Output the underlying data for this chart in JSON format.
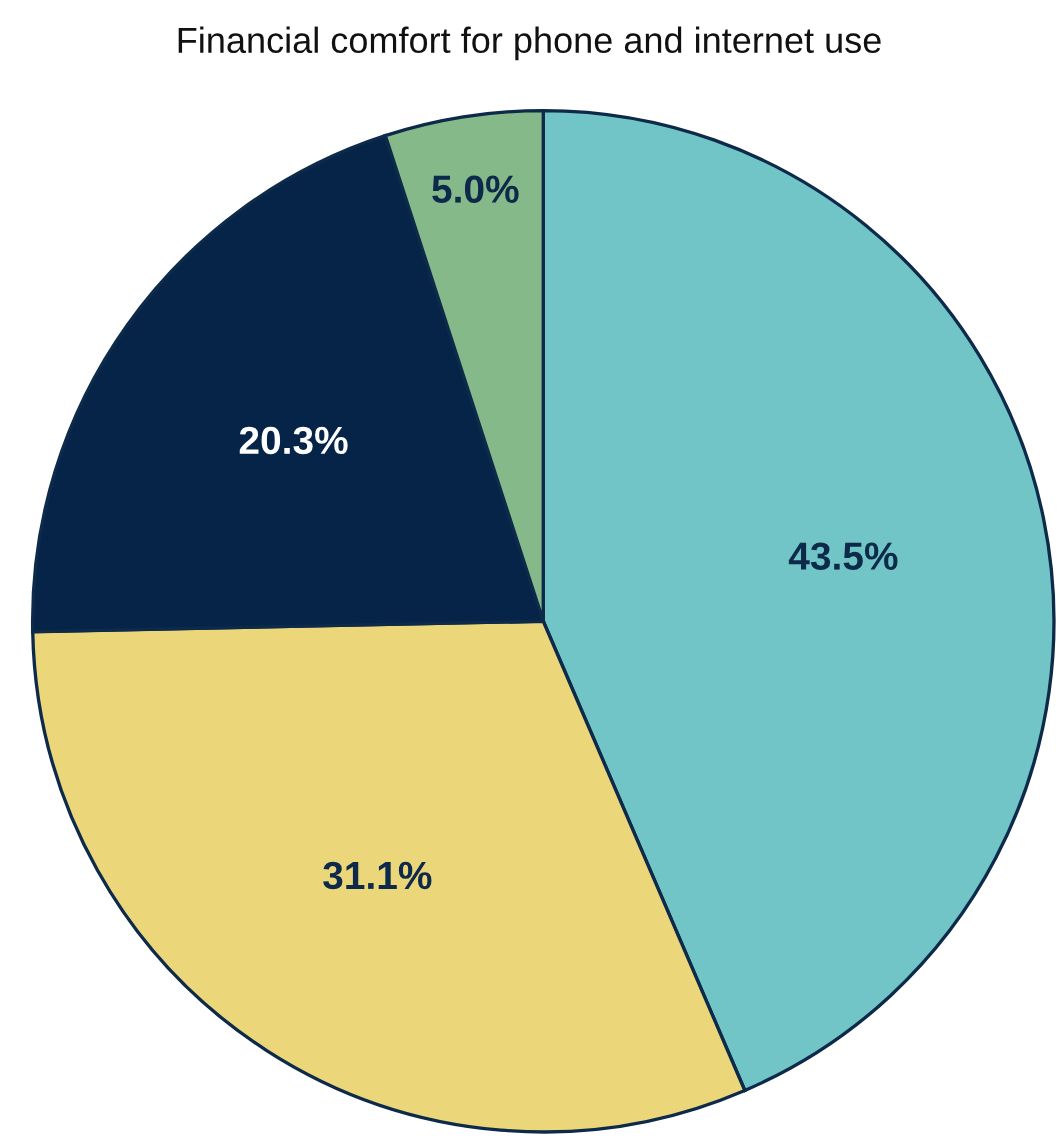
{
  "chart_data": {
    "type": "pie",
    "title": "Financial comfort for phone and internet use",
    "categories": [
      null,
      null,
      null,
      null
    ],
    "values": [
      43.5,
      31.1,
      20.3,
      5.0
    ],
    "colors": [
      "#72c5c6",
      "#ecd67a",
      "#062447",
      "#85b98a"
    ],
    "value_labels": [
      "43.5%",
      "31.1%",
      "20.3%",
      "5.0%"
    ]
  }
}
